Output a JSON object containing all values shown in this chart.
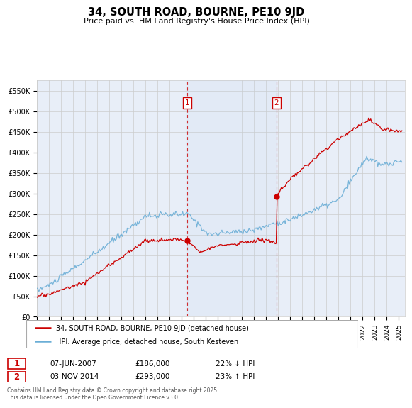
{
  "title": "34, SOUTH ROAD, BOURNE, PE10 9JD",
  "subtitle": "Price paid vs. HM Land Registry's House Price Index (HPI)",
  "ylabel_ticks": [
    "£0",
    "£50K",
    "£100K",
    "£150K",
    "£200K",
    "£250K",
    "£300K",
    "£350K",
    "£400K",
    "£450K",
    "£500K",
    "£550K"
  ],
  "ytick_vals": [
    0,
    50000,
    100000,
    150000,
    200000,
    250000,
    300000,
    350000,
    400000,
    450000,
    500000,
    550000
  ],
  "ylim": [
    0,
    575000
  ],
  "xlim_start": 1995.0,
  "xlim_end": 2025.5,
  "sale1_date": 2007.44,
  "sale1_price": 186000,
  "sale2_date": 2014.84,
  "sale2_price": 293000,
  "hpi_color": "#6baed6",
  "price_color": "#cc0000",
  "legend_label1": "34, SOUTH ROAD, BOURNE, PE10 9JD (detached house)",
  "legend_label2": "HPI: Average price, detached house, South Kesteven",
  "footer": "Contains HM Land Registry data © Crown copyright and database right 2025.\nThis data is licensed under the Open Government Licence v3.0.",
  "background_color": "#e8eef8",
  "plot_bg_color": "#ffffff",
  "grid_color": "#cccccc"
}
